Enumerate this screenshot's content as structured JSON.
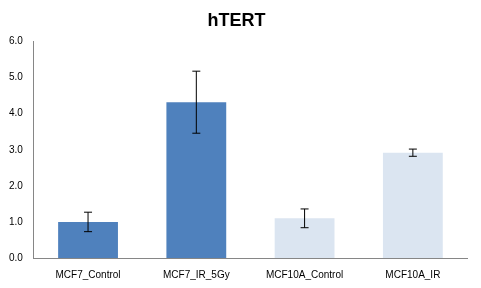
{
  "chart_data": {
    "type": "bar",
    "title": "hTERT",
    "categories": [
      "MCF7_Control",
      "MCF7_IR_5Gy",
      "MCF10A_Control",
      "MCF10A_IR"
    ],
    "values": [
      1.0,
      4.32,
      1.1,
      2.92
    ],
    "errors": [
      0.27,
      0.86,
      0.26,
      0.1
    ],
    "colors": [
      "#4f81bd",
      "#4f81bd",
      "#dbe5f1",
      "#dbe5f1"
    ],
    "ylim": [
      0,
      6
    ],
    "yticks": [
      {
        "value": 0,
        "label": "0.0"
      },
      {
        "value": 1,
        "label": "1.0"
      },
      {
        "value": 2,
        "label": "2.0"
      },
      {
        "value": 3,
        "label": "3.0"
      },
      {
        "value": 4,
        "label": "4.0"
      },
      {
        "value": 5,
        "label": "5.0"
      },
      {
        "value": 6,
        "label": "6.0"
      }
    ],
    "grid": false
  }
}
